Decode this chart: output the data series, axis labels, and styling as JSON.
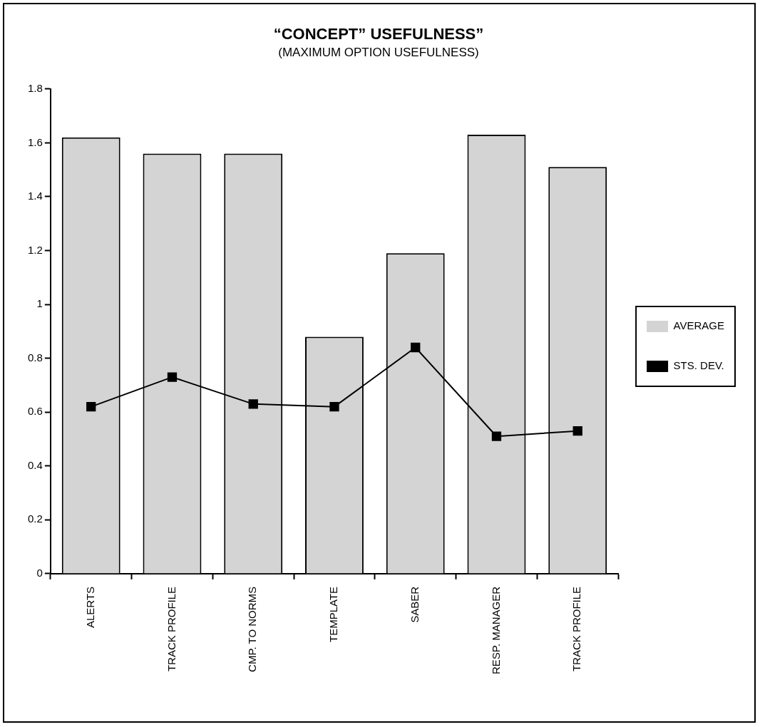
{
  "chart_data": {
    "type": "bar",
    "title": "“CONCEPT” USEFULNESS”",
    "subtitle": "(MAXIMUM OPTION USEFULNESS)",
    "categories": [
      "ALERTS",
      "TRACK PROFILE",
      "CMP. TO NORMS",
      "TEMPLATE",
      "SABER",
      "RESP. MANAGER",
      "TRACK PROFILE"
    ],
    "series": [
      {
        "name": "AVERAGE",
        "color": "#d4d4d4",
        "values": [
          1.62,
          1.56,
          1.56,
          0.88,
          1.19,
          1.63,
          1.51
        ]
      },
      {
        "name": "STS. DEV.",
        "type": "line",
        "color": "#000000",
        "marker": "square",
        "values": [
          0.62,
          0.73,
          0.63,
          0.62,
          0.84,
          0.51,
          0.53
        ]
      }
    ],
    "ylim": [
      0,
      1.8
    ],
    "yticks": [
      0,
      0.2,
      0.4,
      0.6,
      0.8,
      1,
      1.2,
      1.4,
      1.6,
      1.8
    ],
    "grid": false,
    "legend": "right"
  }
}
